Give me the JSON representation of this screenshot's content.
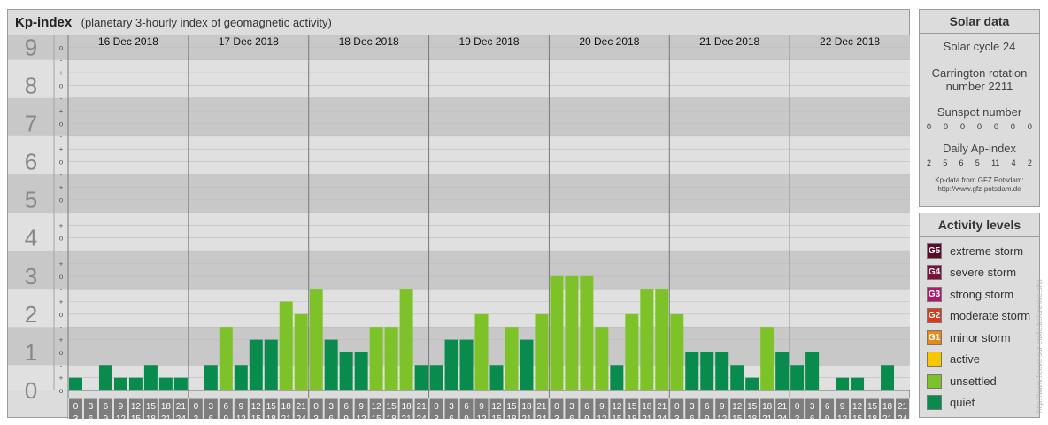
{
  "header": {
    "title": "Kp-index",
    "subtitle": "(planetary 3-hourly index of geomagnetic activity)"
  },
  "colors": {
    "quiet": "#0a8b4e",
    "unsettled": "#7ec229",
    "panel_bg": "#dcdcdc",
    "band_dark": "#c8c8c8",
    "band_light": "#e0e0e0",
    "interval_box": "#7d7d7d"
  },
  "chart_data": {
    "type": "bar",
    "y_labels": [
      "0",
      "1",
      "2",
      "3",
      "4",
      "5",
      "6",
      "7",
      "8",
      "9"
    ],
    "sub_labels": [
      "+",
      "o",
      "-"
    ],
    "ylim": [
      0,
      9.333
    ],
    "days": [
      "16 Dec 2018",
      "17 Dec 2018",
      "18 Dec 2018",
      "19 Dec 2018",
      "20 Dec 2018",
      "21 Dec 2018",
      "22 Dec 2018"
    ],
    "interval_start": [
      "0",
      "3",
      "6",
      "9",
      "12",
      "15",
      "18",
      "21"
    ],
    "interval_end": [
      "3",
      "6",
      "9",
      "12",
      "15",
      "18",
      "21",
      "24"
    ],
    "unsettled_threshold": 1.5,
    "values": [
      [
        0.333,
        0,
        0.667,
        0.333,
        0.333,
        0.667,
        0.333,
        0.333
      ],
      [
        0,
        0.667,
        1.667,
        0.667,
        1.333,
        1.333,
        2.333,
        2
      ],
      [
        2.667,
        1.333,
        1,
        1,
        1.667,
        1.667,
        2.667,
        0.667
      ],
      [
        0.667,
        1.333,
        1.333,
        2,
        0.667,
        1.667,
        1.333,
        2
      ],
      [
        3,
        3,
        3,
        1.667,
        0.667,
        2,
        2.667,
        2.667
      ],
      [
        2,
        1,
        1,
        1,
        0.667,
        0.333,
        1.667,
        1
      ],
      [
        0.667,
        1,
        0,
        0.333,
        0.333,
        0,
        0.667,
        0
      ]
    ]
  },
  "solar": {
    "title": "Solar data",
    "cycle": "Solar cycle 24",
    "carrington_line1": "Carrington rotation",
    "carrington_line2": "number 2211",
    "sunspot_title": "Sunspot number",
    "sunspot": [
      "0",
      "0",
      "0",
      "0",
      "0",
      "0",
      "0"
    ],
    "ap_title": "Daily Ap-index",
    "ap": [
      "2",
      "5",
      "6",
      "5",
      "11",
      "4",
      "2"
    ],
    "source_line1": "Kp-data from GFZ Potsdam:",
    "source_line2": "http://www.gfz-potsdam.de"
  },
  "levels": {
    "title": "Activity levels",
    "items": [
      {
        "badge": "G5",
        "label": "extreme storm",
        "color": "#5a0a2a"
      },
      {
        "badge": "G4",
        "label": "severe storm",
        "color": "#7e1040"
      },
      {
        "badge": "G3",
        "label": "strong storm",
        "color": "#b0186a"
      },
      {
        "badge": "G2",
        "label": "moderate storm",
        "color": "#d83c1c"
      },
      {
        "badge": "G1",
        "label": "minor storm",
        "color": "#e88a14"
      },
      {
        "badge": "",
        "label": "active",
        "color": "#f6c800"
      },
      {
        "badge": "",
        "label": "unsettled",
        "color": "#7ec229"
      },
      {
        "badge": "",
        "label": "quiet",
        "color": "#0a8b4e"
      }
    ]
  },
  "watermark": "http://www.fleuve-sur-etoile.be/archive.php"
}
